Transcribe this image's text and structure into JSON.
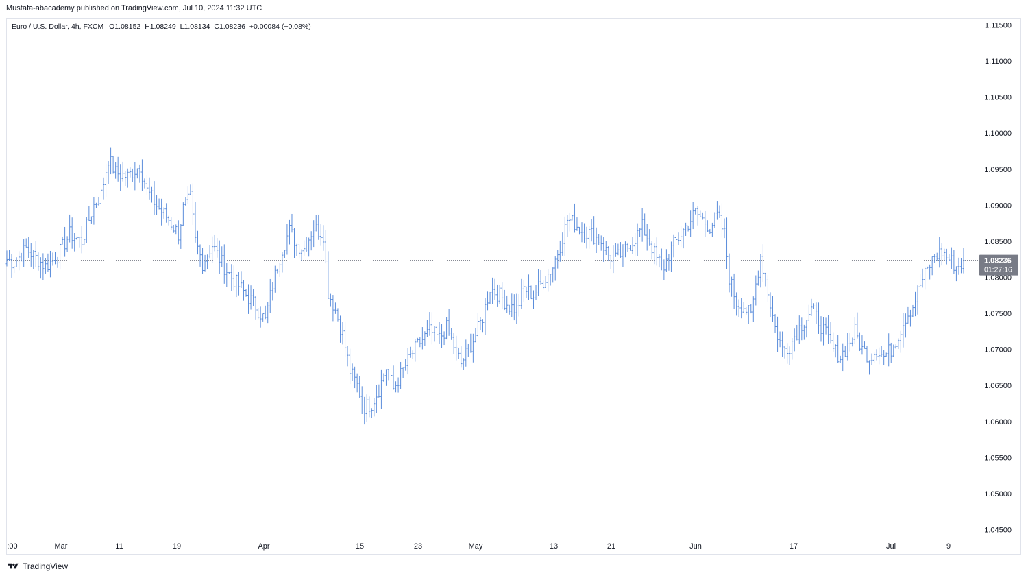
{
  "header": {
    "published_line": "Mustafa-abacademy published on TradingView.com, Jul 10, 2024 11:32 UTC"
  },
  "legend": {
    "symbol": "Euro / U.S. Dollar, 4h, FXCM",
    "open": "O1.08152",
    "high": "H1.08249",
    "low": "L1.08134",
    "close": "C1.08236",
    "change": "+0.00084 (+0.08%)"
  },
  "price_label": {
    "value": "1.08236",
    "countdown": "01:27:16"
  },
  "footer": {
    "brand": "TradingView"
  },
  "colors": {
    "bars": "#5b8ddb",
    "axis_text": "#131722",
    "price_label_bg": "#787b86",
    "grid_border": "#e0e3eb"
  },
  "chart_data": {
    "type": "ohlc",
    "series_name": "",
    "y_ticks": [
      "1.11500",
      "1.11000",
      "1.10500",
      "1.10000",
      "1.09500",
      "1.09000",
      "1.08500",
      "1.08000",
      "1.07500",
      "1.07000",
      "1.06500",
      "1.06000",
      "1.05500",
      "1.05000",
      "1.04500"
    ],
    "x_ticks": [
      ":00",
      "Mar",
      "11",
      "19",
      "Apr",
      "15",
      "23",
      "May",
      "13",
      "21",
      "Jun",
      "17",
      "Jul",
      "9"
    ],
    "ylim": [
      1.044,
      1.116
    ],
    "last_price": 1.08236,
    "path_points": [
      [
        0,
        1.0825
      ],
      [
        3,
        1.082
      ],
      [
        8,
        1.084
      ],
      [
        11,
        1.083
      ],
      [
        16,
        1.0815
      ],
      [
        21,
        1.083
      ],
      [
        26,
        1.086
      ],
      [
        31,
        1.085
      ],
      [
        36,
        1.09
      ],
      [
        39,
        1.0915
      ],
      [
        42,
        1.0965
      ],
      [
        45,
        1.0945
      ],
      [
        50,
        1.094
      ],
      [
        55,
        1.0955
      ],
      [
        58,
        1.092
      ],
      [
        63,
        1.0895
      ],
      [
        67,
        1.088
      ],
      [
        71,
        1.086
      ],
      [
        73,
        1.0895
      ],
      [
        76,
        1.091
      ],
      [
        78,
        1.085
      ],
      [
        81,
        1.082
      ],
      [
        85,
        1.0845
      ],
      [
        89,
        1.082
      ],
      [
        93,
        1.08
      ],
      [
        98,
        1.078
      ],
      [
        103,
        1.076
      ],
      [
        107,
        1.074
      ],
      [
        110,
        1.079
      ],
      [
        114,
        1.084
      ],
      [
        117,
        1.0865
      ],
      [
        120,
        1.0845
      ],
      [
        123,
        1.084
      ],
      [
        127,
        1.087
      ],
      [
        131,
        1.086
      ],
      [
        133,
        1.078
      ],
      [
        136,
        1.0755
      ],
      [
        139,
        1.072
      ],
      [
        142,
        1.067
      ],
      [
        145,
        1.065
      ],
      [
        148,
        1.062
      ],
      [
        151,
        1.0625
      ],
      [
        154,
        1.0645
      ],
      [
        157,
        1.0675
      ],
      [
        160,
        1.0645
      ],
      [
        163,
        1.0665
      ],
      [
        167,
        1.069
      ],
      [
        171,
        1.071
      ],
      [
        175,
        1.0725
      ],
      [
        179,
        1.0715
      ],
      [
        182,
        1.073
      ],
      [
        185,
        1.0705
      ],
      [
        188,
        1.068
      ],
      [
        191,
        1.07
      ],
      [
        194,
        1.072
      ],
      [
        197,
        1.0745
      ],
      [
        200,
        1.0785
      ],
      [
        204,
        1.0775
      ],
      [
        208,
        1.076
      ],
      [
        211,
        1.0755
      ],
      [
        214,
        1.0785
      ],
      [
        218,
        1.0775
      ],
      [
        222,
        1.0795
      ],
      [
        226,
        1.0815
      ],
      [
        229,
        1.0845
      ],
      [
        232,
        1.088
      ],
      [
        235,
        1.0875
      ],
      [
        238,
        1.0865
      ],
      [
        242,
        1.086
      ],
      [
        246,
        1.085
      ],
      [
        249,
        1.083
      ],
      [
        252,
        1.0825
      ],
      [
        255,
        1.0835
      ],
      [
        259,
        1.085
      ],
      [
        263,
        1.087
      ],
      [
        266,
        1.085
      ],
      [
        269,
        1.0825
      ],
      [
        272,
        1.0815
      ],
      [
        275,
        1.084
      ],
      [
        279,
        1.086
      ],
      [
        282,
        1.0875
      ],
      [
        285,
        1.089
      ],
      [
        288,
        1.088
      ],
      [
        291,
        1.087
      ],
      [
        294,
        1.0885
      ],
      [
        297,
        1.086
      ],
      [
        299,
        1.08
      ],
      [
        302,
        1.0765
      ],
      [
        305,
        1.076
      ],
      [
        308,
        1.0745
      ],
      [
        310,
        1.079
      ],
      [
        312,
        1.083
      ],
      [
        315,
        1.078
      ],
      [
        318,
        1.073
      ],
      [
        321,
        1.07
      ],
      [
        324,
        1.0705
      ],
      [
        327,
        1.0725
      ],
      [
        330,
        1.074
      ],
      [
        333,
        1.0755
      ],
      [
        336,
        1.074
      ],
      [
        339,
        1.072
      ],
      [
        342,
        1.07
      ],
      [
        345,
        1.069
      ],
      [
        348,
        1.0705
      ],
      [
        351,
        1.0725
      ],
      [
        354,
        1.07
      ],
      [
        357,
        1.069
      ],
      [
        360,
        1.07
      ],
      [
        363,
        1.069
      ],
      [
        366,
        1.07
      ],
      [
        369,
        1.072
      ],
      [
        372,
        1.0745
      ],
      [
        375,
        1.076
      ],
      [
        378,
        1.079
      ],
      [
        381,
        1.081
      ],
      [
        384,
        1.083
      ],
      [
        387,
        1.0835
      ],
      [
        390,
        1.0825
      ],
      [
        393,
        1.0815
      ],
      [
        396,
        1.082
      ]
    ]
  }
}
